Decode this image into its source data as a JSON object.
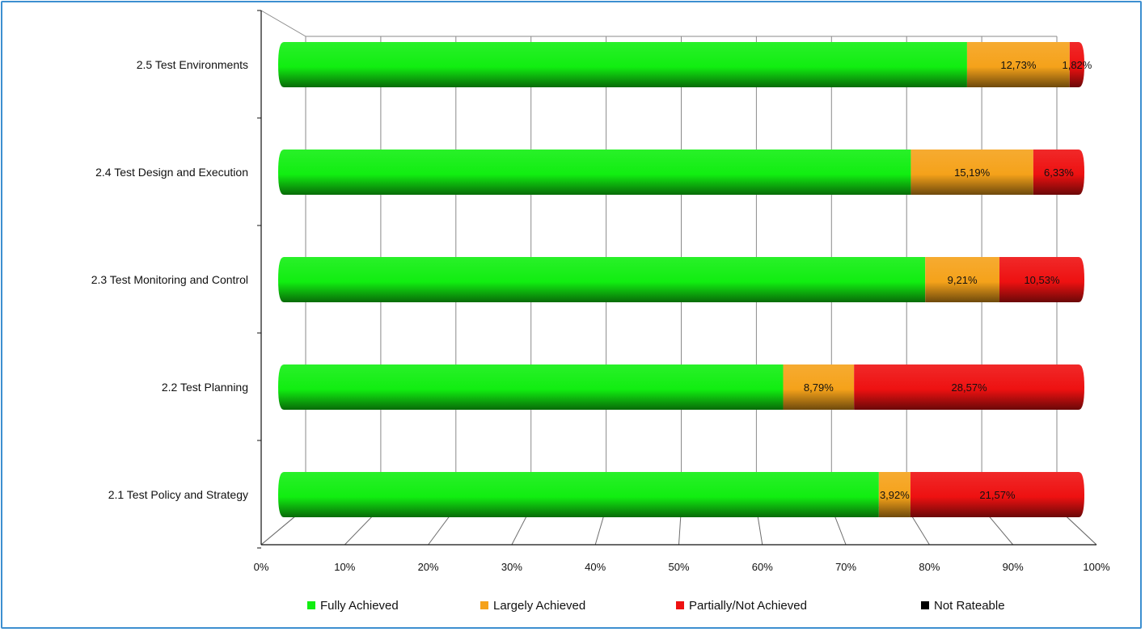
{
  "chart_data": {
    "type": "bar",
    "orientation": "horizontal",
    "stacked": "100%",
    "categories": [
      "2.1 Test Policy and Strategy",
      "2.2 Test Planning",
      "2.3 Test Monitoring and Control",
      "2.4 Test Design and Execution",
      "2.5 Test Environments"
    ],
    "series": [
      {
        "name": "Fully Achieved",
        "color": "#11ee11",
        "values": [
          74.51,
          62.64,
          80.26,
          78.48,
          85.45
        ],
        "labels": [
          "",
          "",
          "",
          "",
          ""
        ]
      },
      {
        "name": "Largely Achieved",
        "color": "#f5a21a",
        "values": [
          3.92,
          8.79,
          9.21,
          15.19,
          12.73
        ],
        "labels": [
          "3,92%",
          "8,79%",
          "9,21%",
          "15,19%",
          "12,73%"
        ]
      },
      {
        "name": "Partially/Not Achieved",
        "color": "#ee1111",
        "values": [
          21.57,
          28.57,
          10.53,
          6.33,
          1.82
        ],
        "labels": [
          "21,57%",
          "28,57%",
          "10,53%",
          "6,33%",
          "1,82%"
        ]
      },
      {
        "name": "Not Rateable",
        "color": "#000000",
        "values": [
          0,
          0,
          0,
          0,
          0
        ],
        "labels": [
          "",
          "",
          "",
          "",
          ""
        ]
      }
    ],
    "xticks": [
      "0%",
      "10%",
      "20%",
      "30%",
      "40%",
      "50%",
      "60%",
      "70%",
      "80%",
      "90%",
      "100%"
    ],
    "xlim": [
      0,
      100
    ],
    "grid": true,
    "legend_position": "bottom"
  }
}
